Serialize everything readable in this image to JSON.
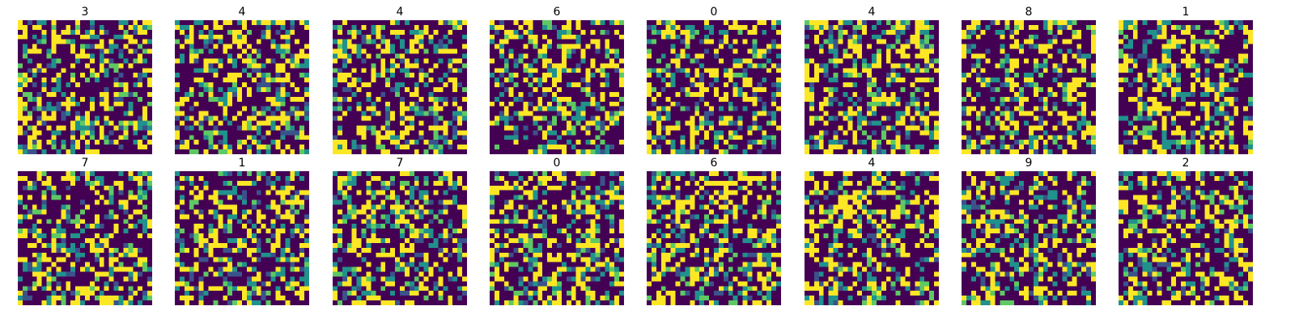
{
  "chart_data": {
    "type": "heatmap",
    "grid_size": 28,
    "colormap": "viridis",
    "colormap_stops": [
      "#440154",
      "#3b528b",
      "#21918c",
      "#5ec962",
      "#fde725"
    ],
    "background": "#ffffff",
    "axes_visible": false,
    "layout": {
      "rows": 2,
      "cols": 8
    },
    "panel_titles": [
      "3",
      "4",
      "4",
      "6",
      "0",
      "4",
      "8",
      "1",
      "7",
      "1",
      "7",
      "0",
      "6",
      "4",
      "9",
      "2"
    ]
  }
}
